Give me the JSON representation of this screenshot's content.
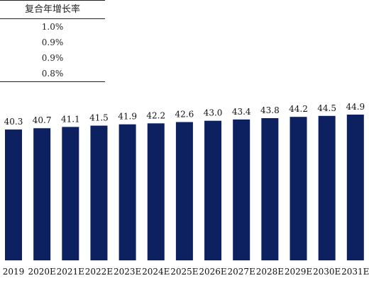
{
  "table": {
    "header": "复合年增长率",
    "rows": [
      "1.0%",
      "0.9%",
      "0.9%",
      "0.8%"
    ]
  },
  "colors": {
    "bar": "#0d2161",
    "text": "#111111",
    "rule": "#222222"
  },
  "chart_data": {
    "type": "bar",
    "categories": [
      "2019",
      "2020E",
      "2021E",
      "2022E",
      "2023E",
      "2024E",
      "2025E",
      "2026E",
      "2027E",
      "2028E",
      "2029E",
      "2030E",
      "2031E"
    ],
    "values": [
      40.3,
      40.7,
      41.1,
      41.5,
      41.9,
      42.2,
      42.6,
      43.0,
      43.4,
      43.8,
      44.2,
      44.5,
      44.9
    ],
    "data_labels": [
      "40.3",
      "40.7",
      "41.1",
      "41.5",
      "41.9",
      "42.2",
      "42.6",
      "43.0",
      "43.4",
      "43.8",
      "44.2",
      "44.5",
      "44.9"
    ],
    "title": "",
    "xlabel": "",
    "ylabel": "",
    "ylim": [
      0,
      46.2
    ],
    "grid": false,
    "legend": "none"
  }
}
